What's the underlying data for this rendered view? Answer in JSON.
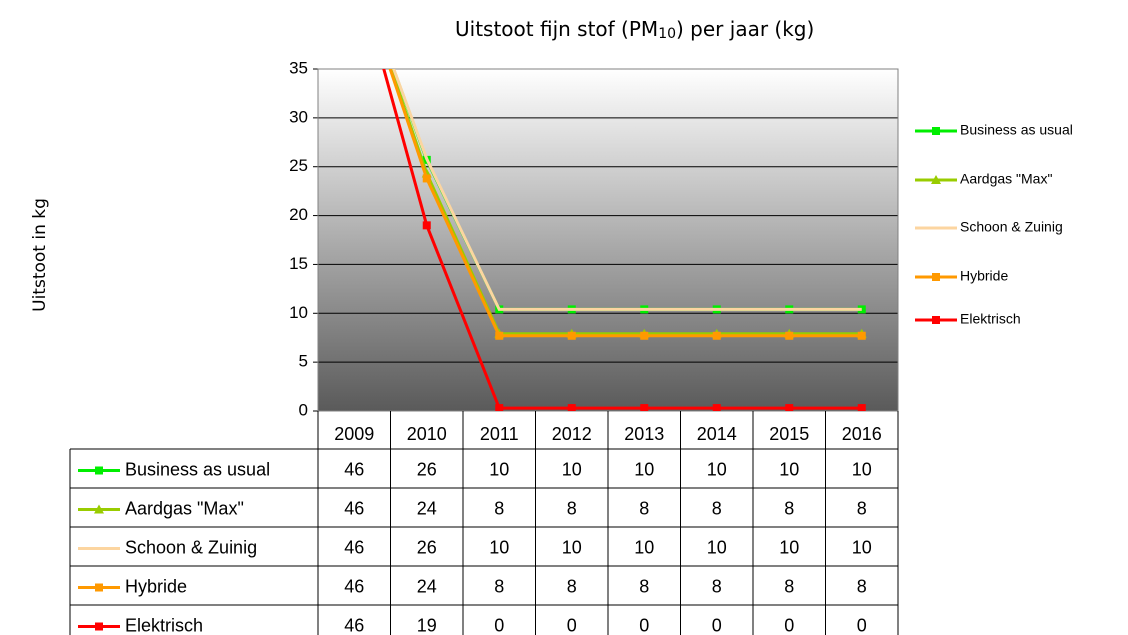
{
  "chart_data": {
    "type": "line",
    "title": [
      "Uitstoot fijn stof (PM",
      "10",
      ") per jaar (kg)"
    ],
    "y_label": "Uitstoot in kg",
    "categories": [
      "2009",
      "2010",
      "2011",
      "2012",
      "2013",
      "2014",
      "2015",
      "2016"
    ],
    "ylim": [
      0,
      35
    ],
    "yticks": [
      0,
      5,
      10,
      15,
      20,
      25,
      30,
      35
    ],
    "grid": true,
    "legend": "right",
    "series": [
      {
        "name": "Business as usual",
        "color": "#00ee00",
        "marker": "square",
        "values": [
          46,
          25.7,
          10.4,
          10.4,
          10.4,
          10.4,
          10.4,
          10.4
        ],
        "value_labels": [
          "46",
          "26",
          "10",
          "10",
          "10",
          "10",
          "10",
          "10"
        ]
      },
      {
        "name": "Aardgas \"Max\"",
        "color": "#99cc00",
        "marker": "triangle",
        "values": [
          46,
          24.3,
          7.9,
          7.9,
          7.9,
          7.9,
          7.9,
          7.9
        ],
        "value_labels": [
          "46",
          "24",
          "8",
          "8",
          "8",
          "8",
          "8",
          "8"
        ]
      },
      {
        "name": "Schoon & Zuinig",
        "color": "#fcd5a0",
        "marker": "none",
        "values": [
          46,
          25.8,
          10.4,
          10.4,
          10.4,
          10.4,
          10.4,
          10.4
        ],
        "value_labels": [
          "46",
          "26",
          "10",
          "10",
          "10",
          "10",
          "10",
          "10"
        ]
      },
      {
        "name": "Hybride",
        "color": "#ff9900",
        "marker": "square",
        "values": [
          46,
          23.8,
          7.7,
          7.7,
          7.7,
          7.7,
          7.7,
          7.7
        ],
        "value_labels": [
          "46",
          "24",
          "8",
          "8",
          "8",
          "8",
          "8",
          "8"
        ]
      },
      {
        "name": "Elektrisch",
        "color": "#ff0000",
        "marker": "square",
        "values": [
          46,
          19,
          0.3,
          0.3,
          0.3,
          0.3,
          0.3,
          0.3
        ],
        "value_labels": [
          "46",
          "19",
          "0",
          "0",
          "0",
          "0",
          "0",
          "0"
        ]
      }
    ]
  }
}
